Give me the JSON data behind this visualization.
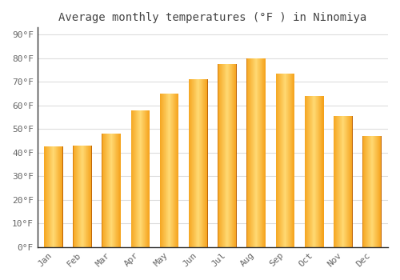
{
  "title": "Average monthly temperatures (°F ) in Ninomiya",
  "months": [
    "Jan",
    "Feb",
    "Mar",
    "Apr",
    "May",
    "Jun",
    "Jul",
    "Aug",
    "Sep",
    "Oct",
    "Nov",
    "Dec"
  ],
  "values": [
    42.5,
    43.0,
    48.0,
    58.0,
    65.0,
    71.0,
    77.5,
    80.0,
    73.5,
    64.0,
    55.5,
    47.0
  ],
  "bar_color_left": "#F5A623",
  "bar_color_mid": "#FFD060",
  "bar_color_right": "#F5A020",
  "yticks": [
    0,
    10,
    20,
    30,
    40,
    50,
    60,
    70,
    80,
    90
  ],
  "ytick_labels": [
    "0°F",
    "10°F",
    "20°F",
    "30°F",
    "40°F",
    "50°F",
    "60°F",
    "70°F",
    "80°F",
    "90°F"
  ],
  "ylim": [
    0,
    93
  ],
  "background_color": "#FFFFFF",
  "grid_color": "#DDDDDD",
  "title_fontsize": 10,
  "tick_fontsize": 8,
  "bar_width": 0.65,
  "font_family": "monospace",
  "tick_color": "#666666",
  "title_color": "#444444",
  "spine_color": "#333333"
}
